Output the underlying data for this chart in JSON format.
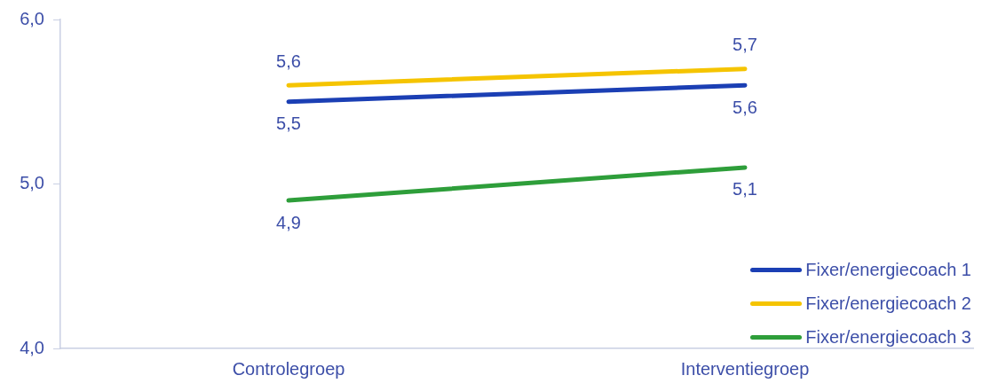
{
  "chart_data": {
    "type": "line",
    "categories": [
      "Controlegroep",
      "Interventiegroep"
    ],
    "series": [
      {
        "name": "Fixer/energiecoach 1",
        "color": "#1b3fb4",
        "values": [
          5.5,
          5.6
        ],
        "value_labels": [
          "5,5",
          "5,6"
        ]
      },
      {
        "name": "Fixer/energiecoach 2",
        "color": "#f5c400",
        "values": [
          5.6,
          5.7
        ],
        "value_labels": [
          "5,6",
          "5,7"
        ]
      },
      {
        "name": "Fixer/energiecoach 3",
        "color": "#2e9e3a",
        "values": [
          4.9,
          5.1
        ],
        "value_labels": [
          "4,9",
          "5,1"
        ]
      }
    ],
    "ylim": [
      4,
      6
    ],
    "yticks": [
      {
        "value": 4,
        "label": "4,0"
      },
      {
        "value": 5,
        "label": "5,0"
      },
      {
        "value": 6,
        "label": "6,0"
      }
    ],
    "grid": false,
    "legend": "bottom right",
    "marker": "none",
    "line_style": "solid"
  }
}
